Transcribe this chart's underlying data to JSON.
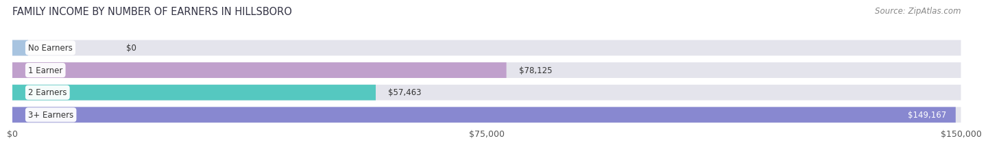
{
  "title": "FAMILY INCOME BY NUMBER OF EARNERS IN HILLSBORO",
  "source": "Source: ZipAtlas.com",
  "categories": [
    "No Earners",
    "1 Earner",
    "2 Earners",
    "3+ Earners"
  ],
  "values": [
    0,
    78125,
    57463,
    149167
  ],
  "labels": [
    "$0",
    "$78,125",
    "$57,463",
    "$149,167"
  ],
  "bar_colors": [
    "#a8c4e0",
    "#c0a0cc",
    "#55c8c0",
    "#8888d0"
  ],
  "label_colors": [
    "#333333",
    "#333333",
    "#333333",
    "#ffffff"
  ],
  "xlim": [
    0,
    150000
  ],
  "xticks": [
    0,
    75000,
    150000
  ],
  "xticklabels": [
    "$0",
    "$75,000",
    "$150,000"
  ],
  "background_color": "#f5f5f8",
  "bar_background": "#e4e4ec",
  "title_fontsize": 10.5,
  "source_fontsize": 8.5,
  "tick_fontsize": 9,
  "label_fontsize": 8.5,
  "category_fontsize": 8.5
}
